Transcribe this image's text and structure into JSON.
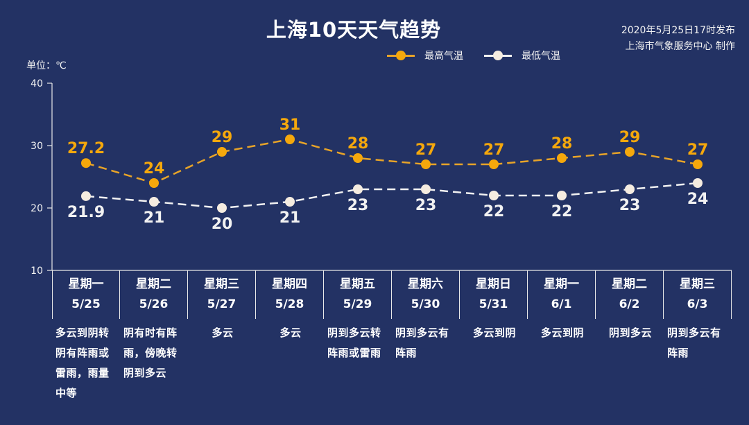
{
  "header": {
    "title": "上海10天天气趋势",
    "issued": "2020年5月25日17时发布",
    "producer": "上海市气象服务中心 制作"
  },
  "legend": {
    "items": [
      {
        "label": "最高气温",
        "color": "#f5a80c"
      },
      {
        "label": "最低气温",
        "color": "#f5ece0"
      }
    ]
  },
  "axis": {
    "unit_label": "单位：℃",
    "ticks": [
      "40",
      "30",
      "20",
      "10"
    ]
  },
  "colors": {
    "background": "#233264",
    "high": "#f5a80c",
    "low": "#f5ece0",
    "axis": "#e8e8e8"
  },
  "days": [
    {
      "weekday": "星期一",
      "date": "5/25",
      "desc": "多云到阴转阴有阵雨或雷雨，雨量中等",
      "high": "27.2",
      "low": "21.9"
    },
    {
      "weekday": "星期二",
      "date": "5/26",
      "desc": "阴有时有阵雨，傍晚转阴到多云",
      "high": "24",
      "low": "21"
    },
    {
      "weekday": "星期三",
      "date": "5/27",
      "desc": "多云",
      "high": "29",
      "low": "20"
    },
    {
      "weekday": "星期四",
      "date": "5/28",
      "desc": "多云",
      "high": "31",
      "low": "21"
    },
    {
      "weekday": "星期五",
      "date": "5/29",
      "desc": "阴到多云转阵雨或雷雨",
      "high": "28",
      "low": "23"
    },
    {
      "weekday": "星期六",
      "date": "5/30",
      "desc": "阴到多云有阵雨",
      "high": "27",
      "low": "23"
    },
    {
      "weekday": "星期日",
      "date": "5/31",
      "desc": "多云到阴",
      "high": "27",
      "low": "22"
    },
    {
      "weekday": "星期一",
      "date": "6/1",
      "desc": "多云到阴",
      "high": "28",
      "low": "22"
    },
    {
      "weekday": "星期二",
      "date": "6/2",
      "desc": "阴到多云",
      "high": "29",
      "low": "23"
    },
    {
      "weekday": "星期三",
      "date": "6/3",
      "desc": "阴到多云有阵雨",
      "high": "27",
      "low": "24"
    }
  ],
  "chart_data": {
    "type": "line",
    "title": "上海10天天气趋势",
    "subtitle": "2020年5月25日17时发布 / 上海市气象服务中心 制作",
    "xlabel": "",
    "ylabel": "单位：℃",
    "ylim": [
      10,
      40
    ],
    "yticks": [
      10,
      20,
      30,
      40
    ],
    "grid": false,
    "legend_position": "top",
    "categories": [
      "星期一 5/25",
      "星期二 5/26",
      "星期三 5/27",
      "星期四 5/28",
      "星期五 5/29",
      "星期六 5/30",
      "星期日 5/31",
      "星期一 6/1",
      "星期二 6/2",
      "星期三 6/3"
    ],
    "series": [
      {
        "name": "最高气温",
        "color": "#f5a80c",
        "style": "dashed",
        "values": [
          27.2,
          24,
          29,
          31,
          28,
          27,
          27,
          28,
          29,
          27
        ]
      },
      {
        "name": "最低气温",
        "color": "#f5ece0",
        "style": "dashed",
        "values": [
          21.9,
          21,
          20,
          21,
          23,
          23,
          22,
          22,
          23,
          24
        ]
      }
    ]
  }
}
